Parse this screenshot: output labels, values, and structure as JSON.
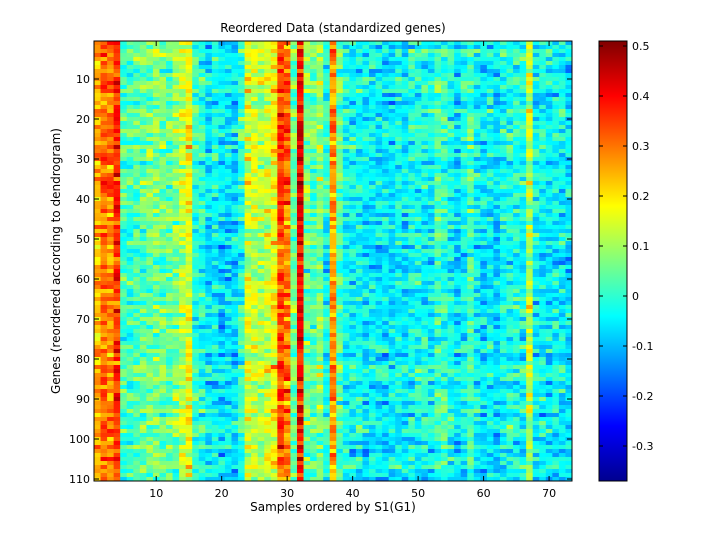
{
  "chart_data": {
    "type": "heatmap",
    "title": "Reordered Data (standardized genes)",
    "xlabel": "Samples ordered by S1(G1)",
    "ylabel": "Genes (reordered according to dendrogram)",
    "n_cols": 73,
    "n_rows": 110,
    "xlim": [
      0.5,
      73.5
    ],
    "ylim": [
      0.5,
      110.5
    ],
    "x_ticks": [
      10,
      20,
      30,
      40,
      50,
      60,
      70
    ],
    "y_ticks": [
      10,
      20,
      30,
      40,
      50,
      60,
      70,
      80,
      90,
      100,
      110
    ],
    "colorbar": {
      "colormap": "jet",
      "min": -0.37,
      "max": 0.51,
      "ticks": [
        0.5,
        0.4,
        0.3,
        0.2,
        0.1,
        0,
        -0.1,
        -0.2,
        -0.3
      ],
      "tick_labels": [
        "0.5",
        "0.4",
        "0.3",
        "0.2",
        "0.1",
        "0",
        "-0.1",
        "-0.2",
        "-0.3"
      ]
    },
    "sample_profile": [
      0.24,
      0.3,
      0.3,
      0.36,
      0.02,
      0.01,
      0.03,
      0.04,
      0.05,
      0.07,
      0.06,
      0.04,
      0.07,
      0.12,
      0.17,
      0.0,
      -0.01,
      -0.06,
      -0.03,
      -0.06,
      -0.05,
      -0.06,
      0.0,
      0.14,
      0.13,
      0.11,
      0.13,
      0.18,
      0.34,
      0.3,
      0.05,
      0.4,
      0.06,
      0.04,
      0.08,
      -0.02,
      0.26,
      0.04,
      -0.03,
      -0.04,
      -0.03,
      -0.05,
      -0.05,
      -0.06,
      -0.05,
      -0.06,
      -0.04,
      -0.05,
      -0.03,
      -0.02,
      -0.03,
      -0.04,
      0.02,
      0.01,
      -0.03,
      -0.06,
      -0.03,
      0.03,
      -0.04,
      -0.06,
      -0.04,
      -0.07,
      -0.02,
      -0.01,
      -0.01,
      -0.03,
      0.12,
      -0.04,
      -0.04,
      -0.05,
      -0.04,
      -0.05,
      -0.06
    ]
  }
}
